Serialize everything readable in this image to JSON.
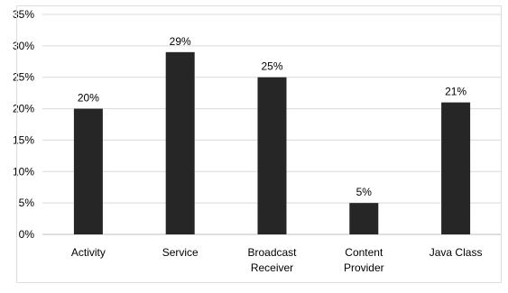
{
  "chart_data": {
    "type": "bar",
    "categories": [
      [
        "Activity"
      ],
      [
        "Service"
      ],
      [
        "Broadcast",
        "Receiver"
      ],
      [
        "Content",
        "Provider"
      ],
      [
        "Java Class"
      ]
    ],
    "values": [
      20,
      29,
      25,
      5,
      21
    ],
    "data_labels": [
      "20%",
      "29%",
      "25%",
      "5%",
      "21%"
    ],
    "ylim": [
      0,
      35
    ],
    "y_ticks": [
      "0%",
      "5%",
      "10%",
      "15%",
      "20%",
      "25%",
      "30%",
      "35%"
    ],
    "y_tick_values": [
      0,
      5,
      10,
      15,
      20,
      25,
      30,
      35
    ],
    "grid": "horizontal",
    "bar_color": "#262626",
    "grid_color": "#d9d9d9",
    "title": "",
    "xlabel": "",
    "ylabel": "",
    "legend": "none"
  }
}
